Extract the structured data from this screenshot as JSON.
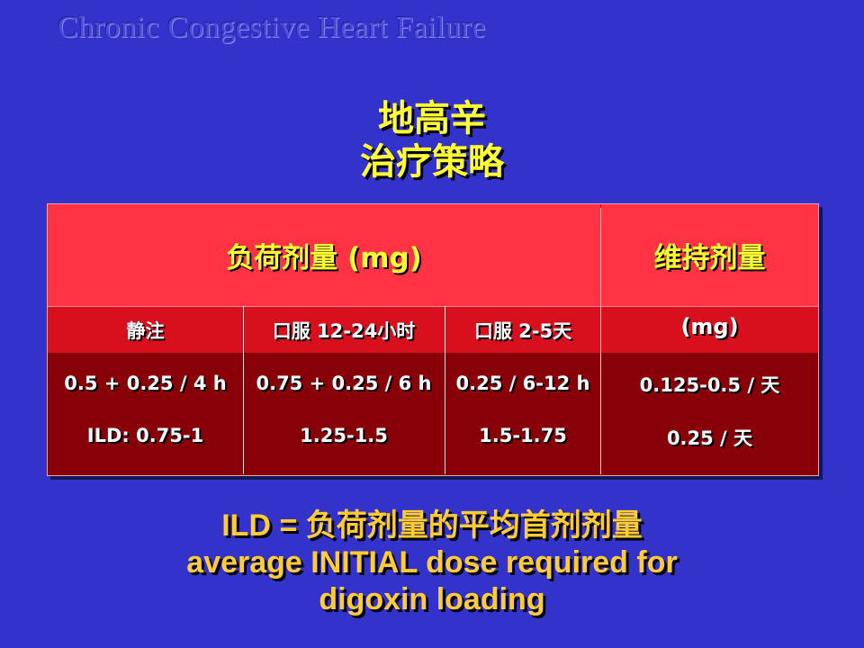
{
  "header": "Chronic Congestive Heart Failure",
  "title": {
    "line1": "地高辛",
    "line2": "治疗策略"
  },
  "table": {
    "loading_header": "负荷剂量 (mg)",
    "maintenance_header": "维持剂量",
    "maintenance_unit": "(mg)",
    "subheaders": [
      "静注",
      "口服 12-24小时",
      "口服 2-5天"
    ],
    "rows": [
      [
        "0.5 + 0.25 / 4 h",
        "0.75 + 0.25 / 6 h",
        "0.25 / 6-12 h",
        "0.125-0.5 / 天"
      ],
      [
        "ILD: 0.75-1",
        "1.25-1.5",
        "1.5-1.75",
        "0.25 / 天"
      ]
    ]
  },
  "footer": {
    "line1": "ILD = 负荷剂量的平均首剂剂量",
    "line2": "average INITIAL dose required for",
    "line3": "digoxin loading"
  },
  "colors": {
    "background": "#3333cc",
    "title": "#ffff33",
    "header_row": "#ff3344",
    "subheader_row": "#d8101e",
    "body_rows": "#880008",
    "footer_text": "#ffcc33"
  }
}
